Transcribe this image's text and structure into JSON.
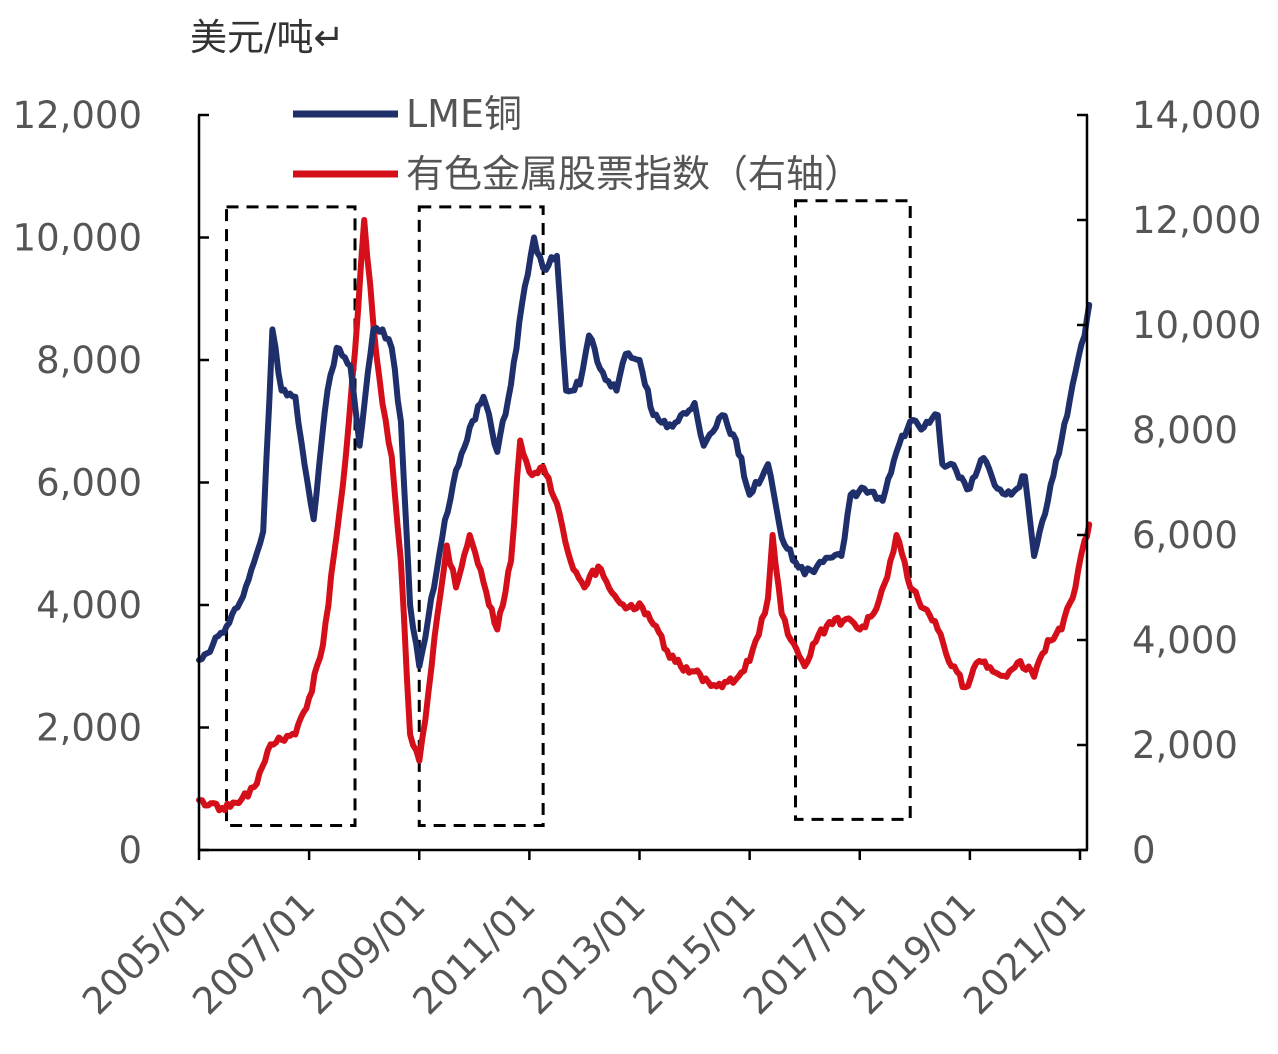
{
  "chart_data": {
    "type": "line",
    "y_unit_label": "美元/吨↵",
    "x_ticks": [
      "2005/01",
      "2007/01",
      "2009/01",
      "2011/01",
      "2013/01",
      "2015/01",
      "2017/01",
      "2019/01",
      "2021/01"
    ],
    "x_range": [
      "2005/01",
      "2021/03"
    ],
    "y_left": {
      "ticks": [
        "0",
        "2,000",
        "4,000",
        "6,000",
        "8,000",
        "10,000",
        "12,000"
      ],
      "ylim": [
        0,
        12000
      ]
    },
    "y_right": {
      "ticks": [
        "0",
        "2,000",
        "4,000",
        "6,000",
        "8,000",
        "10,000",
        "12,000",
        "14,000"
      ],
      "ylim": [
        0,
        14000
      ]
    },
    "grid": false,
    "legend_position": "top-left",
    "series": [
      {
        "name": "LME铜",
        "axis": "left",
        "color": "#1f2f6b",
        "points": [
          [
            "2005/01",
            3100
          ],
          [
            "2005/04",
            3350
          ],
          [
            "2005/07",
            3650
          ],
          [
            "2005/10",
            4050
          ],
          [
            "2006/01",
            4700
          ],
          [
            "2006/03",
            5200
          ],
          [
            "2006/05",
            8500
          ],
          [
            "2006/07",
            7500
          ],
          [
            "2006/10",
            7400
          ],
          [
            "2006/12",
            6300
          ],
          [
            "2007/02",
            5400
          ],
          [
            "2007/05",
            7500
          ],
          [
            "2007/07",
            8200
          ],
          [
            "2007/10",
            7900
          ],
          [
            "2007/12",
            6600
          ],
          [
            "2008/03",
            8500
          ],
          [
            "2008/05",
            8500
          ],
          [
            "2008/07",
            8200
          ],
          [
            "2008/09",
            7000
          ],
          [
            "2008/11",
            4000
          ],
          [
            "2009/01",
            3000
          ],
          [
            "2009/03",
            3800
          ],
          [
            "2009/06",
            5100
          ],
          [
            "2009/09",
            6200
          ],
          [
            "2009/12",
            6900
          ],
          [
            "2010/03",
            7400
          ],
          [
            "2010/06",
            6500
          ],
          [
            "2010/09",
            7600
          ],
          [
            "2010/12",
            9200
          ],
          [
            "2011/02",
            10000
          ],
          [
            "2011/04",
            9500
          ],
          [
            "2011/07",
            9700
          ],
          [
            "2011/09",
            7500
          ],
          [
            "2011/12",
            7600
          ],
          [
            "2012/02",
            8400
          ],
          [
            "2012/05",
            7800
          ],
          [
            "2012/08",
            7500
          ],
          [
            "2012/10",
            8100
          ],
          [
            "2013/01",
            8000
          ],
          [
            "2013/04",
            7100
          ],
          [
            "2013/07",
            6900
          ],
          [
            "2013/10",
            7100
          ],
          [
            "2014/01",
            7300
          ],
          [
            "2014/03",
            6600
          ],
          [
            "2014/07",
            7100
          ],
          [
            "2014/10",
            6700
          ],
          [
            "2015/01",
            5800
          ],
          [
            "2015/05",
            6300
          ],
          [
            "2015/08",
            5100
          ],
          [
            "2015/11",
            4700
          ],
          [
            "2016/01",
            4500
          ],
          [
            "2016/05",
            4700
          ],
          [
            "2016/09",
            4800
          ],
          [
            "2016/11",
            5800
          ],
          [
            "2017/02",
            5900
          ],
          [
            "2017/06",
            5700
          ],
          [
            "2017/09",
            6500
          ],
          [
            "2017/12",
            7000
          ],
          [
            "2018/03",
            6900
          ],
          [
            "2018/06",
            7100
          ],
          [
            "2018/07",
            6300
          ],
          [
            "2018/10",
            6200
          ],
          [
            "2019/01",
            5900
          ],
          [
            "2019/04",
            6400
          ],
          [
            "2019/07",
            5900
          ],
          [
            "2019/10",
            5800
          ],
          [
            "2020/01",
            6100
          ],
          [
            "2020/03",
            4800
          ],
          [
            "2020/06",
            5700
          ],
          [
            "2020/09",
            6700
          ],
          [
            "2020/12",
            7800
          ],
          [
            "2021/02",
            8400
          ],
          [
            "2021/03",
            8900
          ]
        ]
      },
      {
        "name": "有色金属股票指数（右轴）",
        "axis": "right",
        "color": "#d40f1a",
        "points": [
          [
            "2005/01",
            950
          ],
          [
            "2005/03",
            850
          ],
          [
            "2005/06",
            800
          ],
          [
            "2005/09",
            900
          ],
          [
            "2006/01",
            1200
          ],
          [
            "2006/04",
            1900
          ],
          [
            "2006/07",
            2100
          ],
          [
            "2006/10",
            2200
          ],
          [
            "2007/01",
            2900
          ],
          [
            "2007/04",
            3900
          ],
          [
            "2007/07",
            6000
          ],
          [
            "2007/09",
            7500
          ],
          [
            "2007/11",
            9500
          ],
          [
            "2008/01",
            12000
          ],
          [
            "2008/03",
            10000
          ],
          [
            "2008/05",
            8500
          ],
          [
            "2008/07",
            7500
          ],
          [
            "2008/09",
            5500
          ],
          [
            "2008/11",
            2200
          ],
          [
            "2009/01",
            1700
          ],
          [
            "2009/03",
            3000
          ],
          [
            "2009/05",
            4500
          ],
          [
            "2009/07",
            5800
          ],
          [
            "2009/09",
            5000
          ],
          [
            "2009/12",
            6000
          ],
          [
            "2010/03",
            5100
          ],
          [
            "2010/06",
            4200
          ],
          [
            "2010/09",
            5500
          ],
          [
            "2010/11",
            7800
          ],
          [
            "2011/01",
            7200
          ],
          [
            "2011/04",
            7300
          ],
          [
            "2011/07",
            6600
          ],
          [
            "2011/10",
            5500
          ],
          [
            "2012/01",
            5000
          ],
          [
            "2012/04",
            5400
          ],
          [
            "2012/07",
            4900
          ],
          [
            "2012/10",
            4600
          ],
          [
            "2013/01",
            4700
          ],
          [
            "2013/04",
            4300
          ],
          [
            "2013/07",
            3800
          ],
          [
            "2013/10",
            3500
          ],
          [
            "2014/01",
            3400
          ],
          [
            "2014/04",
            3200
          ],
          [
            "2014/07",
            3100
          ],
          [
            "2014/10",
            3250
          ],
          [
            "2015/01",
            3600
          ],
          [
            "2015/03",
            4100
          ],
          [
            "2015/05",
            4800
          ],
          [
            "2015/06",
            6000
          ],
          [
            "2015/08",
            4500
          ],
          [
            "2015/10",
            4000
          ],
          [
            "2016/01",
            3500
          ],
          [
            "2016/04",
            4100
          ],
          [
            "2016/07",
            4300
          ],
          [
            "2016/10",
            4400
          ],
          [
            "2017/01",
            4200
          ],
          [
            "2017/04",
            4500
          ],
          [
            "2017/07",
            5200
          ],
          [
            "2017/09",
            6000
          ],
          [
            "2017/12",
            5000
          ],
          [
            "2018/03",
            4600
          ],
          [
            "2018/06",
            4200
          ],
          [
            "2018/09",
            3500
          ],
          [
            "2018/12",
            3100
          ],
          [
            "2019/03",
            3600
          ],
          [
            "2019/06",
            3400
          ],
          [
            "2019/09",
            3300
          ],
          [
            "2019/12",
            3600
          ],
          [
            "2020/03",
            3300
          ],
          [
            "2020/06",
            4000
          ],
          [
            "2020/09",
            4200
          ],
          [
            "2020/12",
            5000
          ],
          [
            "2021/02",
            5900
          ],
          [
            "2021/03",
            6200
          ]
        ]
      }
    ],
    "highlight_boxes": [
      {
        "x_start": "2005/07",
        "x_end": "2007/11",
        "y_low": 400,
        "y_high": 10500
      },
      {
        "x_start": "2009/01",
        "x_end": "2011/04",
        "y_low": 400,
        "y_high": 10500
      },
      {
        "x_start": "2015/11",
        "x_end": "2017/12",
        "y_low": 500,
        "y_high": 10600
      }
    ]
  }
}
